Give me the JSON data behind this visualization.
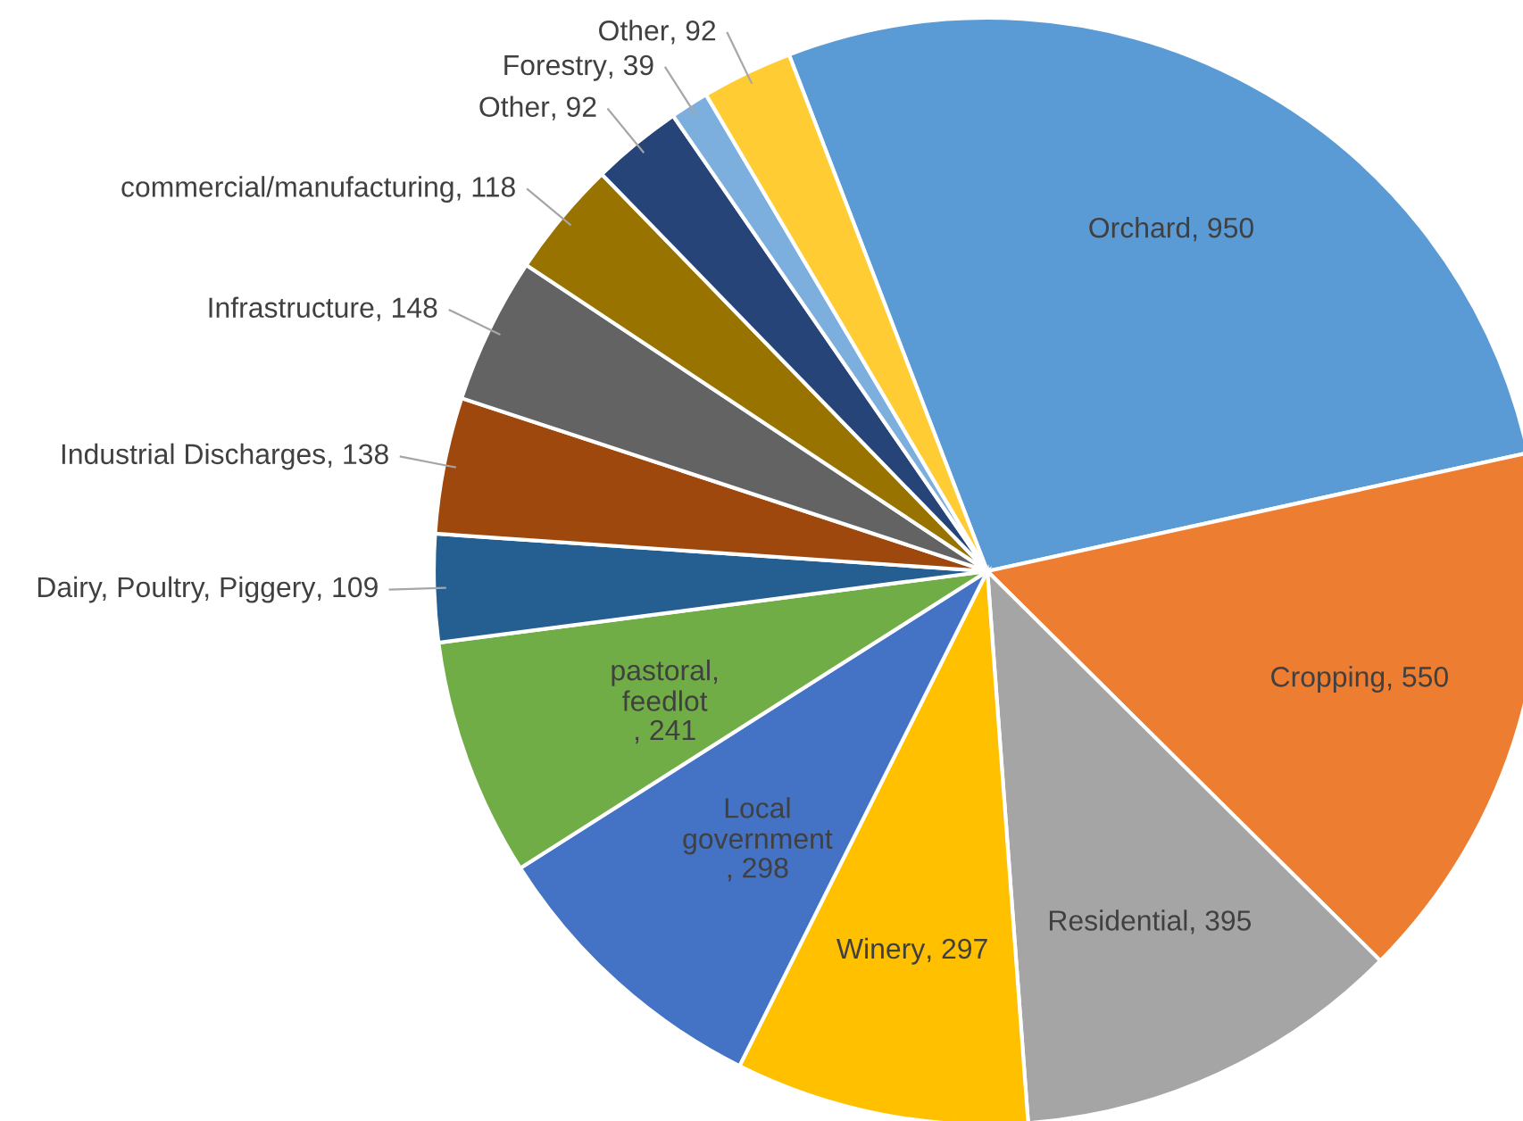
{
  "chart_data": {
    "type": "pie",
    "categories": [
      "Orchard",
      "Cropping",
      "Residential",
      "Winery",
      "Local government",
      "pastoral, feedlot",
      "Dairy, Poultry, Piggery",
      "Industrial Discharges",
      "Infrastructure",
      "commercial/manufacturing",
      "Other",
      "Forestry",
      "Other"
    ],
    "values": [
      950,
      550,
      395,
      297,
      298,
      241,
      109,
      138,
      148,
      118,
      92,
      39,
      92
    ],
    "value_labels": [
      ", 950",
      ", 550",
      ", 395",
      ", 297",
      ", 298",
      ", 241",
      ", 109",
      ", 138",
      ", 148",
      ", 118",
      ", 92",
      ", 39",
      ", 92"
    ],
    "colors": [
      "#5b9bd5",
      "#ed7d31",
      "#a5a5a5",
      "#ffc000",
      "#4472c4",
      "#70ad47",
      "#255e91",
      "#9e480e",
      "#636363",
      "#997300",
      "#264478",
      "#7cafdd",
      "#ffcd33"
    ],
    "legend": false
  }
}
